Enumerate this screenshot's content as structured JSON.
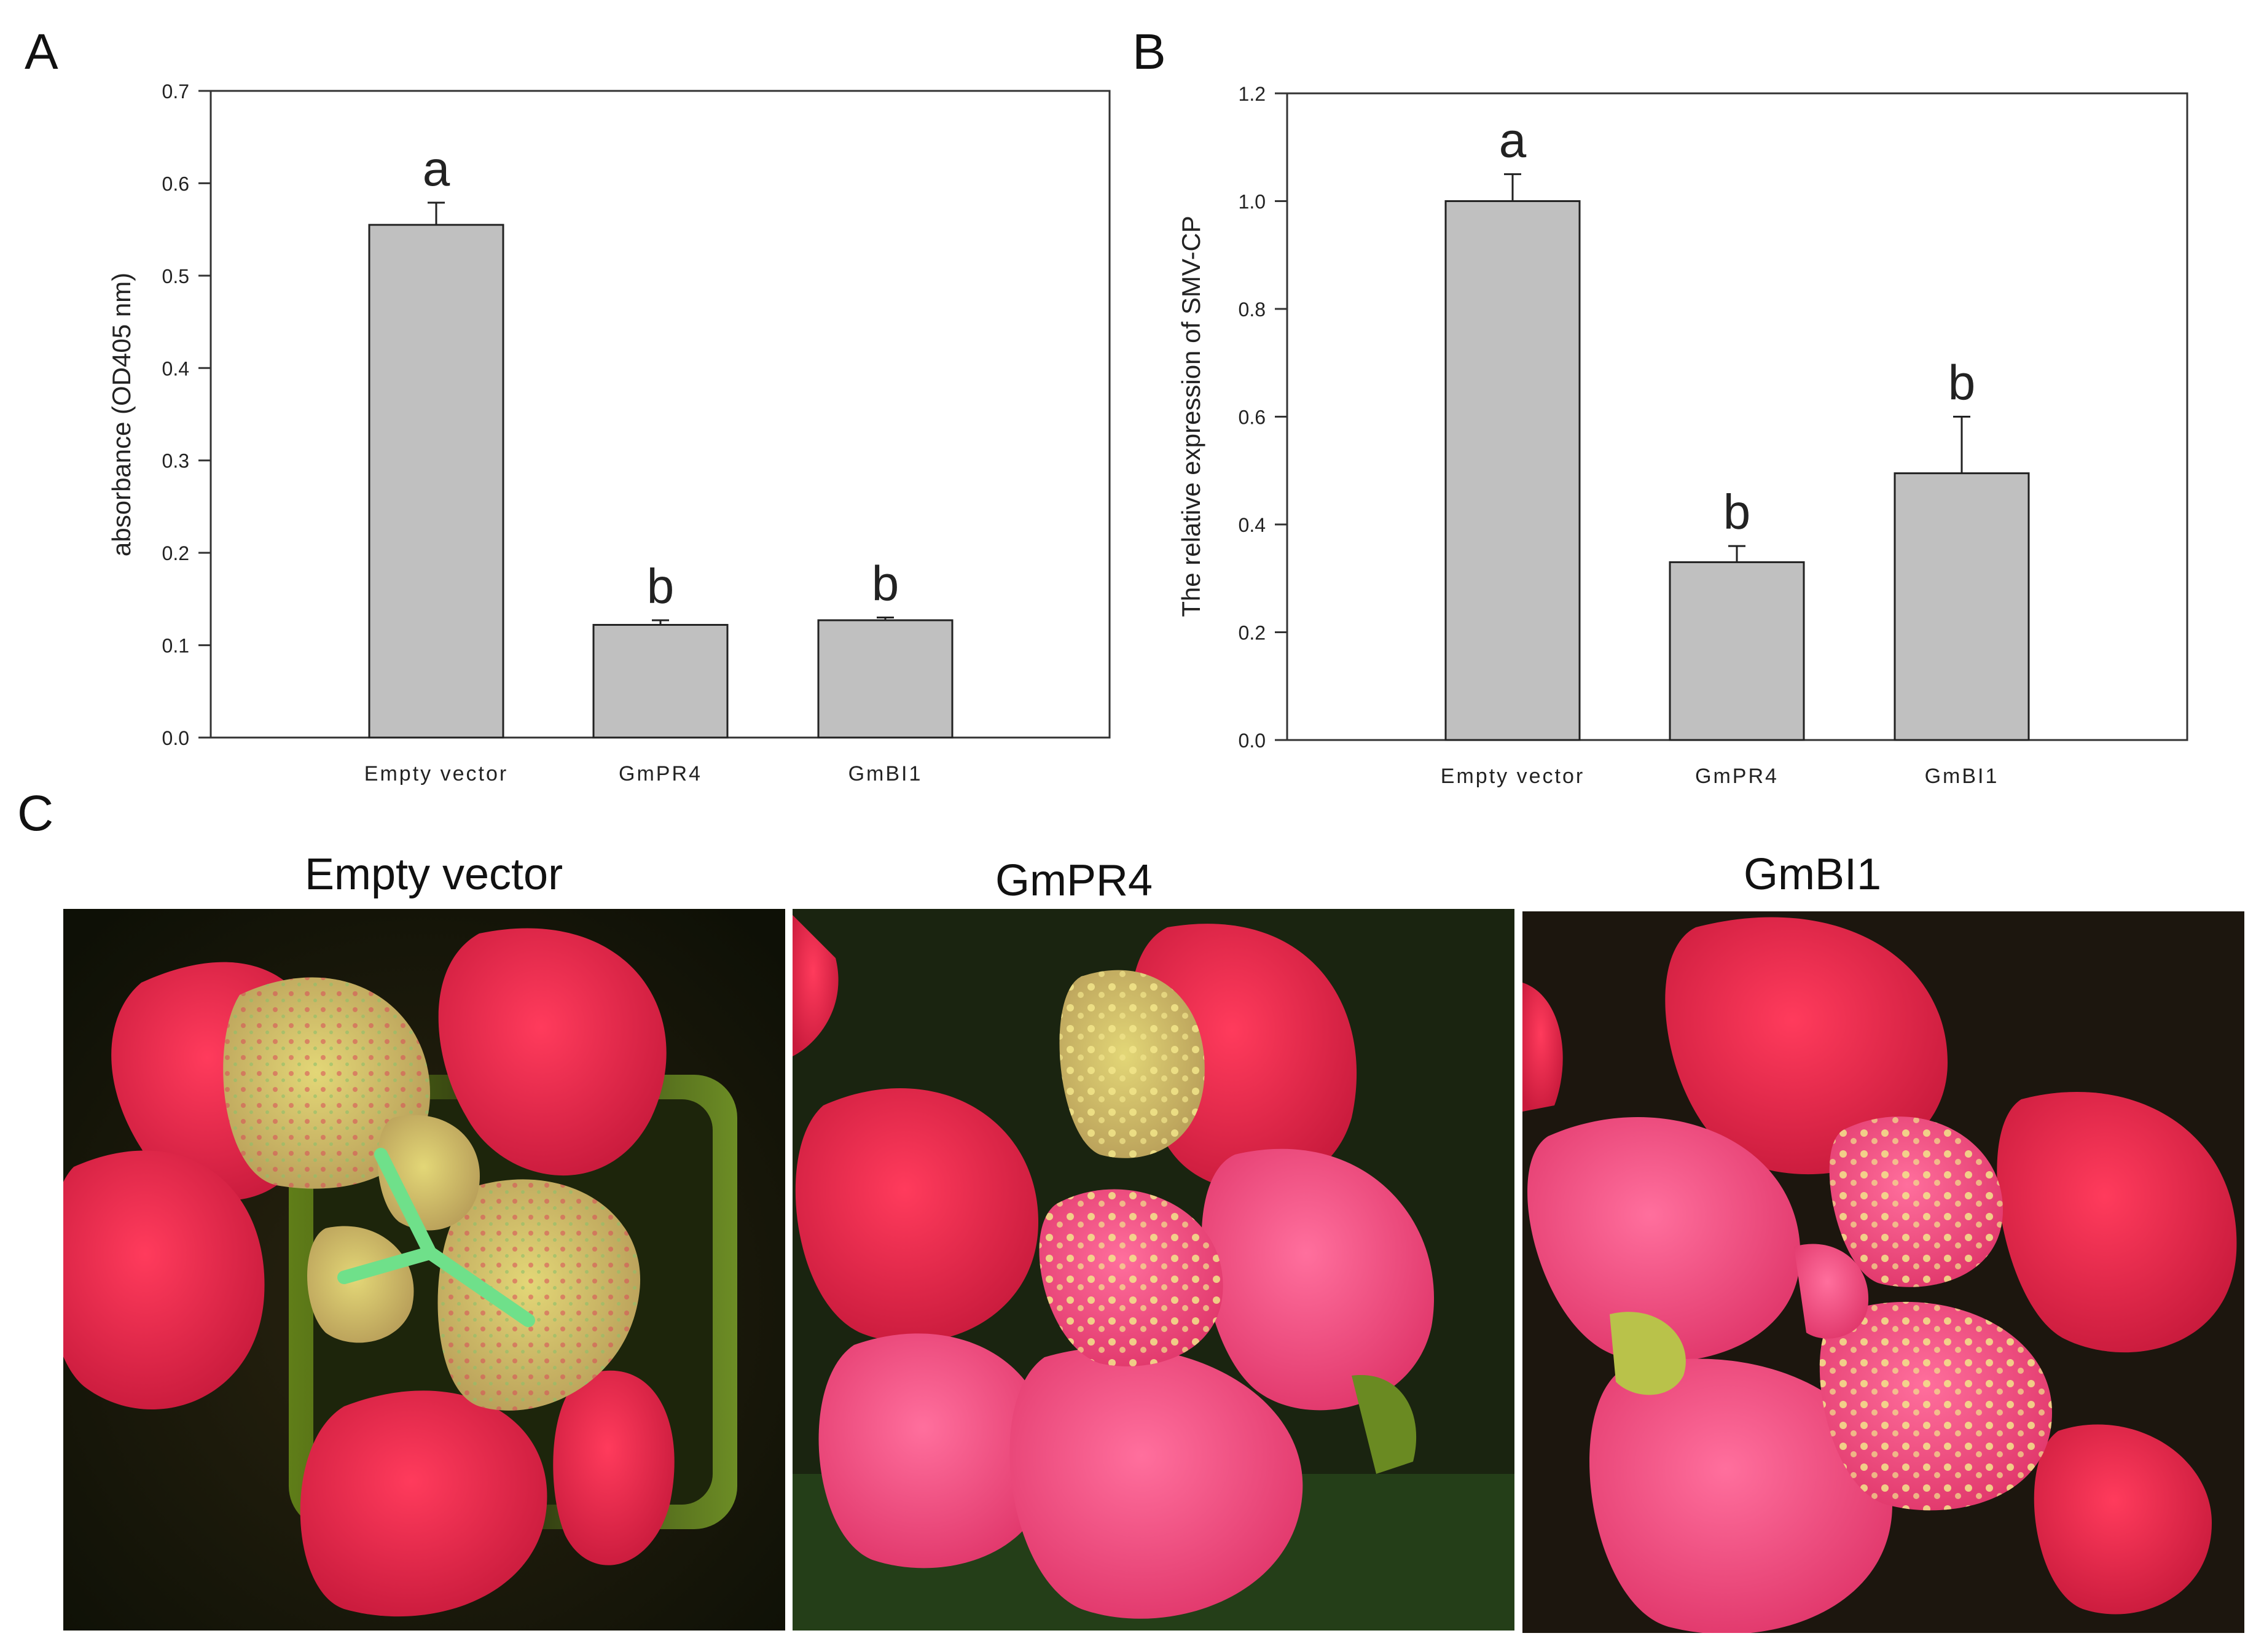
{
  "panels": {
    "A": "A",
    "B": "B",
    "C": "C"
  },
  "chart_data": [
    {
      "type": "bar",
      "panel": "A",
      "categories": [
        "Empty vector",
        "GmPR4",
        "GmBI1"
      ],
      "values": [
        0.555,
        0.122,
        0.127
      ],
      "errors": [
        0.024,
        0.005,
        0.003
      ],
      "significance": [
        "a",
        "b",
        "b"
      ],
      "xlabel": "",
      "ylabel": "absorbance (OD405 nm)",
      "ylim": [
        0,
        0.7
      ],
      "yticks": [
        "0.0",
        "0.1",
        "0.2",
        "0.3",
        "0.4",
        "0.5",
        "0.6",
        "0.7"
      ],
      "grid": false,
      "bar_color": "#c0c0c0"
    },
    {
      "type": "bar",
      "panel": "B",
      "categories": [
        "Empty vector",
        "GmPR4",
        "GmBI1"
      ],
      "values": [
        1.0,
        0.33,
        0.495
      ],
      "errors": [
        0.05,
        0.03,
        0.105
      ],
      "significance": [
        "a",
        "b",
        "b"
      ],
      "xlabel": "",
      "ylabel": "The relative expression of SMV-CP",
      "ylim": [
        0,
        1.2
      ],
      "yticks": [
        "0.0",
        "0.2",
        "0.4",
        "0.6",
        "0.8",
        "1.0",
        "1.2"
      ],
      "grid": false,
      "bar_color": "#c0c0c0"
    }
  ],
  "photos": [
    {
      "label": "Empty vector"
    },
    {
      "label": "GmPR4"
    },
    {
      "label": "GmBI1"
    }
  ],
  "colors": {
    "leaf_red": "#e8264a",
    "leaf_pink": "#ee4f7d",
    "spot_yellow": "#d8d070",
    "background_dark": "#1a1d0c",
    "stem_green": "#6fe08a"
  }
}
